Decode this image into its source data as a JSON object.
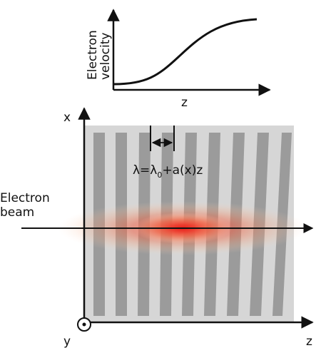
{
  "velocity_plot": {
    "y_axis_label_line1": "Electron",
    "y_axis_label_line2": "velocity",
    "x_axis_label": "z"
  },
  "grating_diagram": {
    "x_axis_label": "x",
    "z_axis_label": "z",
    "y_axis_label": "y",
    "beam_label_line1": "Electron",
    "beam_label_line2": "beam",
    "period_formula": {
      "lhs": "λ=λ",
      "subscript": "0",
      "rhs": "+a(x)z"
    }
  },
  "colors": {
    "panel": "#d6d6d6",
    "stripes": "#9b9b9b",
    "beam_core": "#e8201a",
    "axis": "#111111"
  }
}
